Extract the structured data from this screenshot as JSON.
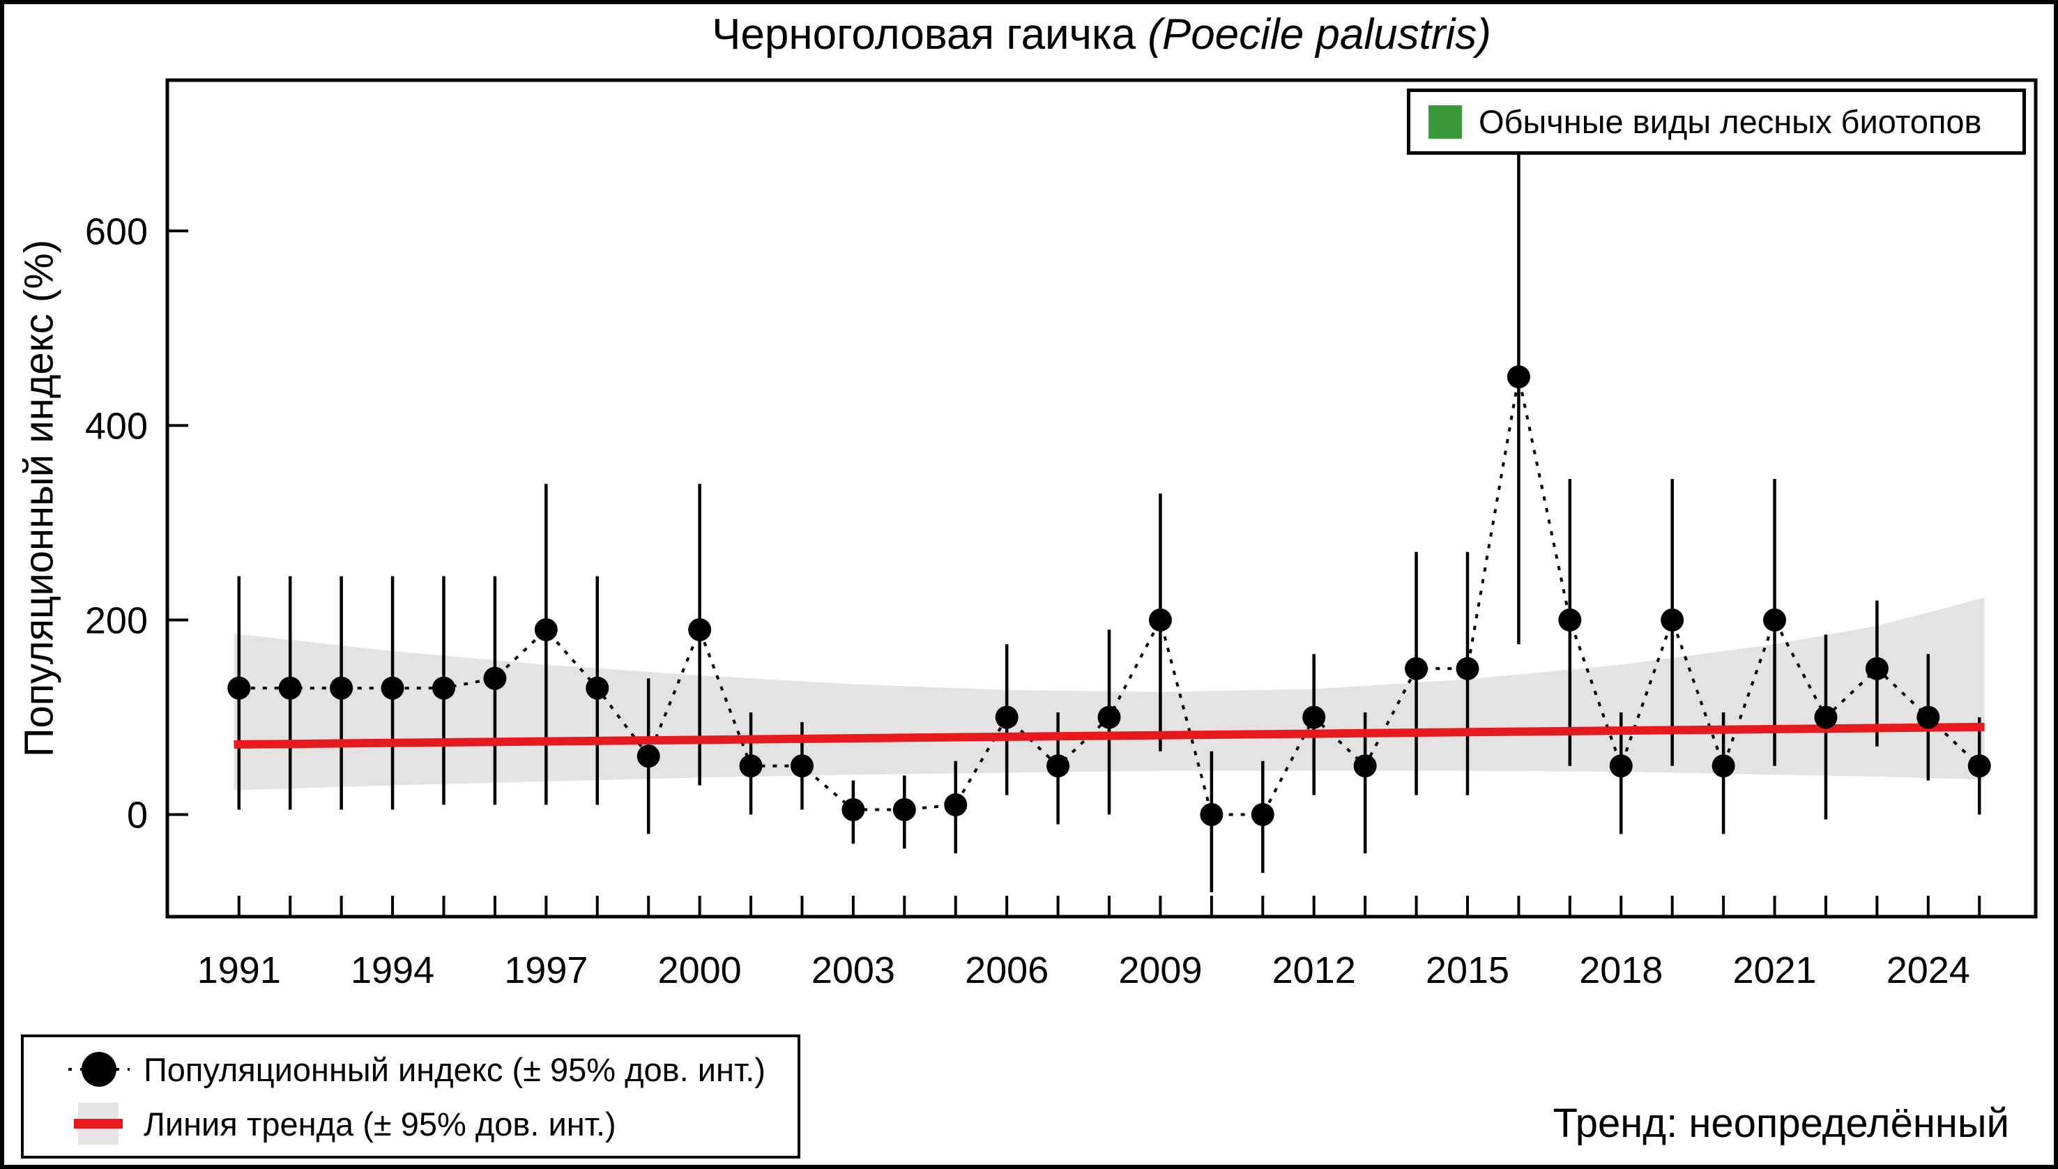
{
  "figure": {
    "title_regular": "Черноголовая гаичка ",
    "title_italic": "(Poecile palustris)",
    "trend_caption": "Тренд: неопределённый"
  },
  "legend_top": {
    "label": "Обычные виды лесных биотопов",
    "swatch_color": "#3a993a"
  },
  "legend_bottom": {
    "items": [
      {
        "label": "Популяционный индекс (± 95% дов. инт.)"
      },
      {
        "label": "Линия тренда (± 95% дов. инт.)"
      }
    ]
  },
  "chart_data": {
    "type": "line",
    "title": "Черноголовая гаичка (Poecile palustris)",
    "xlabel": "",
    "ylabel": "Популяционный индекс (%)",
    "xlim": [
      1989.6,
      2026.1
    ],
    "ylim": [
      -105,
      755
    ],
    "grid": false,
    "legend_position": "top-right",
    "y_ticks": [
      0,
      200,
      400,
      600
    ],
    "x_tick_labels": [
      1991,
      1994,
      1997,
      2000,
      2003,
      2006,
      2009,
      2012,
      2015,
      2018,
      2021,
      2024
    ],
    "point_color": "#000000",
    "series": [
      {
        "name": "Популяционный индекс (± 95% дов. инт.)",
        "x": [
          1991,
          1992,
          1993,
          1994,
          1995,
          1996,
          1997,
          1998,
          1999,
          2000,
          2001,
          2002,
          2003,
          2004,
          2005,
          2006,
          2007,
          2008,
          2009,
          2010,
          2011,
          2012,
          2013,
          2014,
          2015,
          2016,
          2017,
          2018,
          2019,
          2020,
          2021,
          2022,
          2023,
          2024,
          2025
        ],
        "y": [
          130,
          130,
          130,
          130,
          130,
          140,
          190,
          130,
          60,
          190,
          50,
          50,
          5,
          5,
          10,
          100,
          50,
          100,
          200,
          0,
          0,
          100,
          50,
          150,
          150,
          450,
          200,
          50,
          200,
          50,
          200,
          100,
          150,
          100,
          50
        ],
        "ci_low": [
          5,
          5,
          5,
          5,
          10,
          10,
          10,
          10,
          -20,
          30,
          0,
          5,
          -30,
          -35,
          -40,
          20,
          -10,
          0,
          65,
          -80,
          -60,
          20,
          -40,
          20,
          20,
          175,
          50,
          -20,
          50,
          -20,
          50,
          -5,
          70,
          35,
          0
        ],
        "ci_high": [
          245,
          245,
          245,
          245,
          245,
          245,
          340,
          245,
          140,
          340,
          105,
          95,
          35,
          40,
          55,
          175,
          105,
          190,
          330,
          65,
          55,
          165,
          105,
          270,
          270,
          745,
          345,
          105,
          345,
          105,
          345,
          185,
          220,
          165,
          100
        ]
      }
    ],
    "trend_line": {
      "name": "Линия тренда (± 95% дов. инт.)",
      "x": [
        1990.9,
        2025.1
      ],
      "y": [
        72,
        90
      ],
      "color": "#e8191d"
    },
    "trend_band": {
      "x": [
        1990.9,
        1994,
        1997,
        2000,
        2003,
        2006,
        2009,
        2012,
        2015,
        2018,
        2021,
        2023,
        2025.1
      ],
      "upper": [
        186,
        168,
        154,
        143,
        134,
        128,
        126,
        129,
        139,
        154,
        175,
        194,
        223
      ],
      "lower": [
        25,
        30,
        34,
        38,
        41,
        43,
        45,
        45,
        45,
        44,
        41,
        39,
        36
      ],
      "color": "#e3e3e3"
    }
  }
}
